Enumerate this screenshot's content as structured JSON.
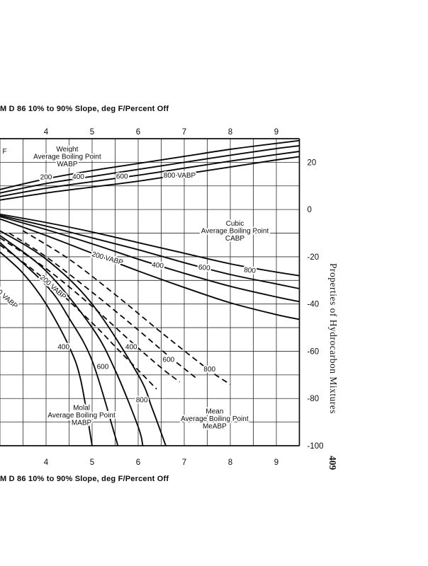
{
  "page": {
    "sidebar_title": "Properties of Hydrocarbon Mixtures",
    "page_number": "409"
  },
  "chart_data": {
    "type": "line",
    "title_top": "M  D 86  10% to 90% Slope, deg F/Percent Off",
    "title_bottom": "M  D 86  10% to 90% Slope, deg F/Percent Off",
    "x_axis": {
      "range": [
        3,
        9.5
      ],
      "minor_step": 0.5,
      "ticks": [
        4,
        5,
        6,
        7,
        8,
        9
      ]
    },
    "y_axis": {
      "range": [
        -100,
        30
      ],
      "minor_step": 10,
      "ticks": [
        20,
        0,
        -20,
        -40,
        -60,
        -80,
        -100
      ],
      "side": "right"
    },
    "series": [
      {
        "family": "WABP",
        "name": "200",
        "dashed": false,
        "points": [
          [
            3,
            8.5
          ],
          [
            4,
            13
          ],
          [
            5,
            16.5
          ],
          [
            6,
            19.5
          ],
          [
            7,
            22.5
          ],
          [
            8,
            25.5
          ],
          [
            9,
            28
          ],
          [
            9.5,
            29.2
          ]
        ]
      },
      {
        "family": "WABP",
        "name": "400",
        "dashed": false,
        "points": [
          [
            3,
            7
          ],
          [
            4,
            11
          ],
          [
            5,
            14
          ],
          [
            6,
            17
          ],
          [
            7,
            20
          ],
          [
            8,
            23
          ],
          [
            9,
            25.8
          ],
          [
            9.5,
            27
          ]
        ]
      },
      {
        "family": "WABP",
        "name": "600",
        "dashed": false,
        "points": [
          [
            3,
            5.5
          ],
          [
            4,
            9
          ],
          [
            5,
            11.8
          ],
          [
            6,
            14.5
          ],
          [
            7,
            17.5
          ],
          [
            8,
            20.5
          ],
          [
            9,
            23.3
          ],
          [
            9.5,
            24.6
          ]
        ]
      },
      {
        "family": "WABP",
        "name": "800",
        "dashed": false,
        "points": [
          [
            3,
            4
          ],
          [
            4,
            7
          ],
          [
            5,
            9.5
          ],
          [
            6,
            12
          ],
          [
            7,
            15
          ],
          [
            8,
            18
          ],
          [
            9,
            21
          ],
          [
            9.5,
            22.4
          ]
        ]
      },
      {
        "family": "CABP",
        "name": "200",
        "dashed": false,
        "points": [
          [
            3,
            -4
          ],
          [
            4,
            -11
          ],
          [
            5,
            -18.5
          ],
          [
            6,
            -26
          ],
          [
            7,
            -33
          ],
          [
            8,
            -39.5
          ],
          [
            9,
            -44.5
          ],
          [
            9.5,
            -46.5
          ]
        ]
      },
      {
        "family": "CABP",
        "name": "400",
        "dashed": false,
        "points": [
          [
            3,
            -3
          ],
          [
            4,
            -8.5
          ],
          [
            5,
            -14.5
          ],
          [
            6,
            -21
          ],
          [
            7,
            -27
          ],
          [
            8,
            -32.5
          ],
          [
            9,
            -37
          ],
          [
            9.5,
            -39
          ]
        ]
      },
      {
        "family": "CABP",
        "name": "600",
        "dashed": false,
        "points": [
          [
            3,
            -2.5
          ],
          [
            4,
            -7
          ],
          [
            5,
            -12
          ],
          [
            6,
            -17
          ],
          [
            7,
            -22.5
          ],
          [
            8,
            -27.5
          ],
          [
            9,
            -31.5
          ],
          [
            9.5,
            -33.5
          ]
        ]
      },
      {
        "family": "CABP",
        "name": "800",
        "dashed": false,
        "points": [
          [
            3,
            -2
          ],
          [
            4,
            -5.5
          ],
          [
            5,
            -9.5
          ],
          [
            6,
            -14
          ],
          [
            7,
            -18.5
          ],
          [
            8,
            -23
          ],
          [
            9,
            -26.5
          ],
          [
            9.5,
            -28
          ]
        ]
      },
      {
        "family": "MABP",
        "name": "200",
        "dashed": false,
        "points": [
          [
            3,
            -18
          ],
          [
            3.5,
            -27
          ],
          [
            4,
            -40
          ],
          [
            4.5,
            -58
          ],
          [
            4.75,
            -72
          ],
          [
            5.0,
            -100
          ]
        ]
      },
      {
        "family": "MABP",
        "name": "400",
        "dashed": false,
        "points": [
          [
            3,
            -14
          ],
          [
            4,
            -32
          ],
          [
            4.5,
            -46
          ],
          [
            5,
            -64
          ],
          [
            5.5,
            -96
          ],
          [
            5.55,
            -100
          ]
        ]
      },
      {
        "family": "MABP",
        "name": "600",
        "dashed": false,
        "points": [
          [
            3,
            -11
          ],
          [
            4,
            -26
          ],
          [
            5,
            -50
          ],
          [
            5.5,
            -68
          ],
          [
            6,
            -92
          ],
          [
            6.1,
            -100
          ]
        ]
      },
      {
        "family": "MABP",
        "name": "800",
        "dashed": false,
        "points": [
          [
            3,
            -9
          ],
          [
            4,
            -21
          ],
          [
            5,
            -40
          ],
          [
            6,
            -70
          ],
          [
            6.3,
            -84
          ],
          [
            6.6,
            -100
          ]
        ]
      },
      {
        "family": "MeABP",
        "name": "200",
        "dashed": true,
        "points": [
          [
            3,
            -15
          ],
          [
            4,
            -30
          ],
          [
            5,
            -48
          ],
          [
            5.5,
            -58
          ],
          [
            6,
            -68
          ],
          [
            6.4,
            -76
          ]
        ]
      },
      {
        "family": "MeABP",
        "name": "400",
        "dashed": true,
        "points": [
          [
            3,
            -12
          ],
          [
            4,
            -25
          ],
          [
            5,
            -41
          ],
          [
            5.85,
            -56
          ],
          [
            6.5,
            -67
          ],
          [
            6.9,
            -73
          ]
        ]
      },
      {
        "family": "MeABP",
        "name": "600",
        "dashed": true,
        "points": [
          [
            3.2,
            -10
          ],
          [
            4,
            -20
          ],
          [
            5,
            -35
          ],
          [
            6,
            -51
          ],
          [
            6.66,
            -62
          ],
          [
            7.3,
            -72
          ]
        ]
      },
      {
        "family": "MeABP",
        "name": "800",
        "dashed": true,
        "points": [
          [
            3.5,
            -9
          ],
          [
            4.5,
            -21
          ],
          [
            5.5,
            -36
          ],
          [
            6.5,
            -52
          ],
          [
            7.54,
            -68
          ],
          [
            8,
            -74
          ]
        ]
      }
    ],
    "curve_labels": [
      {
        "text": "F",
        "x": 3.1,
        "y": 24.8,
        "rotate": 0
      },
      {
        "text": "200",
        "x": 4.0,
        "y": 13.8,
        "rotate": 0
      },
      {
        "text": "400",
        "x": 4.7,
        "y": 13.9,
        "rotate": 0
      },
      {
        "text": "600",
        "x": 5.65,
        "y": 14.1,
        "rotate": 0
      },
      {
        "text": "800 VABP",
        "x": 6.9,
        "y": 14.5,
        "rotate": 0
      },
      {
        "text": "200 VABP",
        "x": 5.32,
        "y": -20.5,
        "rotate": 16
      },
      {
        "text": "400",
        "x": 6.42,
        "y": -23.5,
        "rotate": 6
      },
      {
        "text": "600",
        "x": 7.43,
        "y": -24.5,
        "rotate": 6
      },
      {
        "text": "800",
        "x": 8.42,
        "y": -25.6,
        "rotate": 6
      },
      {
        "text": "00 VABP",
        "x": 3.1,
        "y": -37,
        "rotate": 42
      },
      {
        "text": "200 VABP",
        "x": 4.12,
        "y": -32.5,
        "rotate": 42
      },
      {
        "text": "400",
        "x": 4.38,
        "y": -58,
        "rotate": 0
      },
      {
        "text": "600",
        "x": 5.23,
        "y": -66.5,
        "rotate": 0
      },
      {
        "text": "800",
        "x": 6.08,
        "y": -80.5,
        "rotate": 0
      },
      {
        "text": "400",
        "x": 5.85,
        "y": -58,
        "rotate": 0
      },
      {
        "text": "600",
        "x": 6.66,
        "y": -63.5,
        "rotate": 0
      },
      {
        "text": "800",
        "x": 7.55,
        "y": -67.5,
        "rotate": 0
      }
    ],
    "annotations": [
      {
        "name": "wabp-annotation",
        "x": 4.46,
        "y": 22.2,
        "lines": [
          "Weight",
          "Average Boiling Point",
          "WABP"
        ]
      },
      {
        "name": "cabp-annotation",
        "x": 8.1,
        "y": -9.2,
        "lines": [
          "Cubic",
          "Average Boiling Point",
          "CABP"
        ]
      },
      {
        "name": "mabp-annotation",
        "x": 4.77,
        "y": -87.3,
        "lines": [
          "Molal",
          "Average Boiling Point",
          "MABP"
        ]
      },
      {
        "name": "meabp-annotation",
        "x": 7.66,
        "y": -88.8,
        "lines": [
          "Mean",
          "Average Boiling Point",
          "MeABP"
        ]
      }
    ],
    "line_color": "#0a0a0a",
    "grid_color": "#2a2a2a"
  }
}
